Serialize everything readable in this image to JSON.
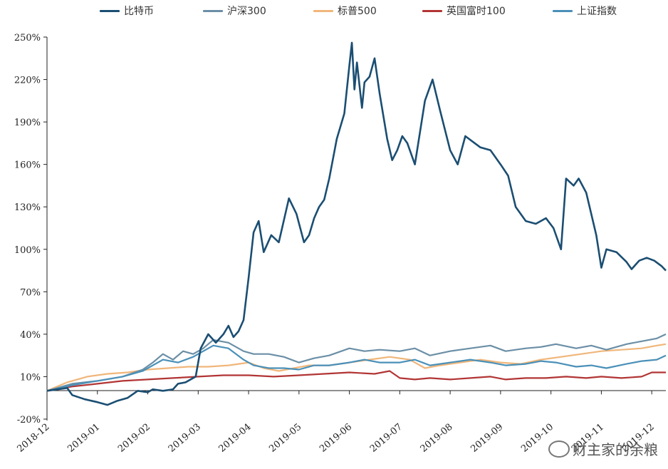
{
  "chart_data": {
    "type": "line",
    "title": "",
    "xlabel": "",
    "ylabel": "",
    "ylim": [
      -20,
      250
    ],
    "yticks": [
      -20,
      10,
      40,
      70,
      100,
      130,
      160,
      190,
      220,
      250
    ],
    "ytick_labels": [
      "-20%",
      "10%",
      "40%",
      "70%",
      "100%",
      "130%",
      "160%",
      "190%",
      "220%",
      "250%"
    ],
    "x_categories": [
      "2018-12",
      "2019-01",
      "2019-02",
      "2019-03",
      "2019-04",
      "2019-05",
      "2019-06",
      "2019-07",
      "2019-08",
      "2019-09",
      "2019-10",
      "2019-11",
      "2019-12"
    ],
    "grid": false,
    "legend_position": "top",
    "series": [
      {
        "name": "比特币",
        "color": "#1b4e72",
        "x": [
          0,
          0.4,
          0.5,
          0.75,
          1.0,
          1.2,
          1.4,
          1.6,
          1.8,
          2.0,
          2.1,
          2.3,
          2.5,
          2.6,
          2.75,
          2.85,
          2.95,
          3.05,
          3.2,
          3.35,
          3.5,
          3.6,
          3.7,
          3.8,
          3.9,
          4.0,
          4.1,
          4.2,
          4.3,
          4.45,
          4.6,
          4.8,
          4.95,
          5.1,
          5.2,
          5.3,
          5.4,
          5.5,
          5.6,
          5.75,
          5.9,
          6.0,
          6.05,
          6.1,
          6.15,
          6.25,
          6.3,
          6.4,
          6.5,
          6.6,
          6.75,
          6.85,
          6.95,
          7.05,
          7.15,
          7.3,
          7.5,
          7.65,
          7.8,
          8.0,
          8.15,
          8.3,
          8.45,
          8.6,
          8.8,
          9.0,
          9.15,
          9.3,
          9.5,
          9.7,
          9.9,
          10.05,
          10.2,
          10.3,
          10.45,
          10.55,
          10.7,
          10.9,
          11.0,
          11.1,
          11.3,
          11.5,
          11.6,
          11.75,
          11.9,
          12.05,
          12.2,
          12.28
        ],
        "values": [
          0,
          2,
          -3,
          -6,
          -8,
          -10,
          -7,
          -5,
          0,
          -1,
          1,
          0,
          1,
          5,
          6,
          8,
          10,
          30,
          40,
          34,
          40,
          46,
          38,
          42,
          50,
          80,
          112,
          120,
          98,
          110,
          105,
          136,
          125,
          105,
          110,
          122,
          130,
          135,
          150,
          178,
          196,
          230,
          246,
          213,
          232,
          200,
          218,
          222,
          235,
          210,
          178,
          163,
          170,
          180,
          175,
          160,
          205,
          220,
          198,
          170,
          160,
          180,
          176,
          172,
          170,
          160,
          152,
          130,
          120,
          118,
          122,
          115,
          100,
          150,
          145,
          150,
          140,
          110,
          87,
          100,
          98,
          91,
          86,
          92,
          94,
          92,
          88,
          85
        ]
      },
      {
        "name": "沪深300",
        "color": "#6b8fa6",
        "x": [
          0,
          0.5,
          1.0,
          1.5,
          1.9,
          2.1,
          2.3,
          2.5,
          2.7,
          2.9,
          3.1,
          3.3,
          3.6,
          3.9,
          4.1,
          4.4,
          4.7,
          5.0,
          5.3,
          5.6,
          6.0,
          6.3,
          6.6,
          7.0,
          7.3,
          7.6,
          8.0,
          8.4,
          8.8,
          9.1,
          9.5,
          9.8,
          10.1,
          10.5,
          10.8,
          11.1,
          11.5,
          11.8,
          12.1,
          12.28
        ],
        "values": [
          0,
          5,
          7,
          10,
          15,
          20,
          26,
          22,
          28,
          26,
          30,
          36,
          34,
          28,
          26,
          26,
          24,
          20,
          23,
          25,
          30,
          28,
          29,
          28,
          30,
          25,
          28,
          30,
          32,
          28,
          30,
          31,
          33,
          30,
          32,
          29,
          33,
          35,
          37,
          40
        ]
      },
      {
        "name": "标普500",
        "color": "#f0b67a",
        "x": [
          0,
          0.4,
          0.8,
          1.2,
          1.6,
          2.0,
          2.4,
          2.8,
          3.2,
          3.6,
          4.0,
          4.3,
          4.6,
          4.9,
          5.2,
          5.6,
          6.0,
          6.4,
          6.8,
          7.2,
          7.5,
          7.8,
          8.2,
          8.6,
          9.0,
          9.4,
          9.8,
          10.2,
          10.6,
          11.0,
          11.4,
          11.8,
          12.1,
          12.28
        ],
        "values": [
          0,
          6,
          10,
          12,
          13,
          15,
          16,
          17,
          17,
          18,
          20,
          16,
          14,
          16,
          18,
          18,
          20,
          22,
          24,
          22,
          16,
          18,
          20,
          22,
          20,
          19,
          22,
          24,
          26,
          28,
          29,
          30,
          32,
          33
        ]
      },
      {
        "name": "英国富时100",
        "color": "#b23535",
        "x": [
          0,
          0.5,
          1.0,
          1.5,
          2.0,
          2.5,
          3.0,
          3.5,
          4.0,
          4.5,
          5.0,
          5.5,
          6.0,
          6.5,
          6.8,
          7.0,
          7.3,
          7.6,
          8.0,
          8.4,
          8.8,
          9.1,
          9.5,
          9.9,
          10.3,
          10.7,
          11.0,
          11.4,
          11.8,
          12.0,
          12.28
        ],
        "values": [
          0,
          3,
          5,
          7,
          8,
          9,
          10,
          11,
          11,
          10,
          11,
          12,
          13,
          12,
          14,
          9,
          8,
          9,
          8,
          9,
          10,
          8,
          9,
          9,
          10,
          9,
          10,
          9,
          10,
          13,
          13
        ]
      },
      {
        "name": "上证指数",
        "color": "#4a90b8",
        "x": [
          0,
          0.5,
          1.0,
          1.5,
          1.9,
          2.1,
          2.3,
          2.6,
          2.9,
          3.1,
          3.3,
          3.6,
          3.9,
          4.1,
          4.4,
          4.7,
          5.0,
          5.3,
          5.6,
          6.0,
          6.3,
          6.6,
          7.0,
          7.3,
          7.6,
          8.0,
          8.4,
          8.8,
          9.1,
          9.5,
          9.8,
          10.1,
          10.5,
          10.8,
          11.1,
          11.5,
          11.8,
          12.1,
          12.28
        ],
        "values": [
          0,
          4,
          7,
          10,
          14,
          18,
          22,
          20,
          24,
          28,
          32,
          30,
          22,
          18,
          16,
          16,
          15,
          18,
          18,
          20,
          22,
          20,
          20,
          22,
          18,
          20,
          22,
          20,
          18,
          19,
          21,
          20,
          17,
          18,
          16,
          19,
          21,
          22,
          25
        ]
      }
    ]
  },
  "watermark": {
    "text": "财主家的余粮"
  }
}
